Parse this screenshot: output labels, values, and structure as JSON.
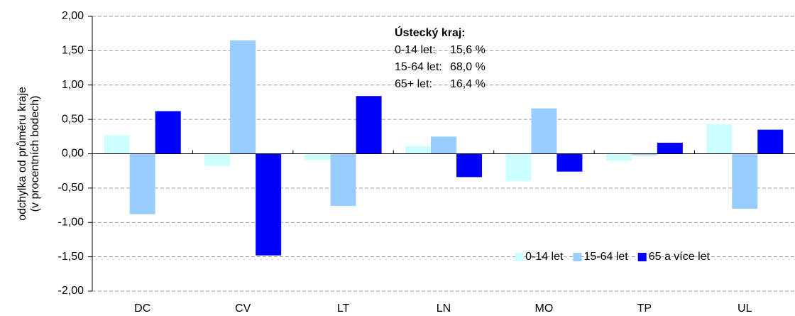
{
  "chart_data": {
    "type": "bar",
    "ylabel": [
      "odchylka od průměru kraje",
      "(v procentních bodech)"
    ],
    "categories": [
      "DC",
      "CV",
      "LT",
      "LN",
      "MO",
      "TP",
      "UL"
    ],
    "series": [
      {
        "name": "0-14 let",
        "color": "#ccffff",
        "values": [
          0.27,
          -0.17,
          -0.09,
          0.11,
          -0.4,
          -0.1,
          0.43
        ]
      },
      {
        "name": "15-64 let",
        "color": "#99ccff",
        "values": [
          -0.88,
          1.65,
          -0.76,
          0.25,
          0.66,
          -0.02,
          -0.8
        ]
      },
      {
        "name": "65 a více let",
        "color": "#0000ff",
        "values": [
          0.62,
          -1.48,
          0.84,
          -0.34,
          -0.26,
          0.16,
          0.35
        ]
      }
    ],
    "ylim": [
      -2,
      2
    ],
    "yticks": [
      {
        "value": -2,
        "label": "-2,00"
      },
      {
        "value": -1.5,
        "label": "-1,50"
      },
      {
        "value": -1,
        "label": "-1,00"
      },
      {
        "value": -0.5,
        "label": "-0,50"
      },
      {
        "value": 0,
        "label": "0,00"
      },
      {
        "value": 0.5,
        "label": "0,50"
      },
      {
        "value": 1,
        "label": "1,00"
      },
      {
        "value": 1.5,
        "label": "1,50"
      },
      {
        "value": 2,
        "label": "2,00"
      }
    ],
    "grid": true,
    "legend": "lower right",
    "annotation": {
      "title": "Ústecký kraj:",
      "rows": [
        {
          "label": "0-14 let:",
          "value": "15,6 %"
        },
        {
          "label": "15-64 let:",
          "value": "68,0 %"
        },
        {
          "label": "65+ let:",
          "value": "16,4 %"
        }
      ]
    }
  }
}
